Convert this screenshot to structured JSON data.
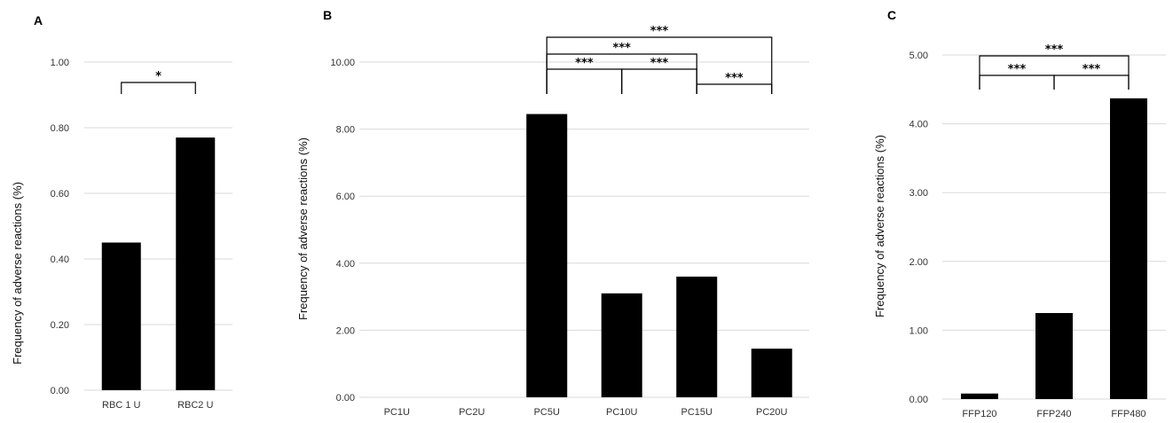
{
  "chart_data": [
    {
      "panel": "A",
      "type": "bar",
      "ylabel": "Frequency of adverse reactions  (%)",
      "categories": [
        "RBC1U",
        "RBC2U"
      ],
      "category_labels": [
        "RBC 1 U",
        "RBC2 U"
      ],
      "values": [
        0.45,
        0.77
      ],
      "ylim": [
        0,
        1.0
      ],
      "yticks": [
        "0.00",
        "0.20",
        "0.40",
        "0.60",
        "0.80",
        "1.00"
      ],
      "grid": true,
      "significance": [
        {
          "from": 0,
          "to": 1,
          "label": "*"
        }
      ]
    },
    {
      "panel": "B",
      "type": "bar",
      "ylabel": "Frequency of adverse reactions  (%)",
      "categories": [
        "PC1U",
        "PC2U",
        "PC5U",
        "PC10U",
        "PC15U",
        "PC20U"
      ],
      "category_labels": [
        "PC1U",
        "PC2U",
        "PC5U",
        "PC10U",
        "PC15U",
        "PC20U"
      ],
      "values": [
        0,
        0,
        8.45,
        3.1,
        3.6,
        1.45
      ],
      "ylim": [
        0,
        10.0
      ],
      "yticks": [
        "0.00",
        "2.00",
        "4.00",
        "6.00",
        "8.00",
        "10.00"
      ],
      "grid": true,
      "significance": [
        {
          "from": 2,
          "to": 3,
          "label": "***"
        },
        {
          "from": 3,
          "to": 4,
          "label": "***"
        },
        {
          "from": 4,
          "to": 5,
          "label": "***"
        },
        {
          "from": 2,
          "to": 4,
          "label": "***"
        },
        {
          "from": 2,
          "to": 5,
          "label": "***"
        }
      ]
    },
    {
      "panel": "C",
      "type": "bar",
      "ylabel": "Frequency of adverse reactions  (%)",
      "categories": [
        "FFP120",
        "FFP240",
        "FFP480"
      ],
      "category_labels": [
        "FFP120",
        "FFP240",
        "FFP480"
      ],
      "values": [
        0.08,
        1.25,
        4.37
      ],
      "ylim": [
        0,
        5.0
      ],
      "yticks": [
        "0.00",
        "1.00",
        "2.00",
        "3.00",
        "4.00",
        "5.00"
      ],
      "grid": true,
      "significance": [
        {
          "from": 0,
          "to": 1,
          "label": "***"
        },
        {
          "from": 1,
          "to": 2,
          "label": "***"
        },
        {
          "from": 0,
          "to": 2,
          "label": "***"
        }
      ]
    }
  ]
}
